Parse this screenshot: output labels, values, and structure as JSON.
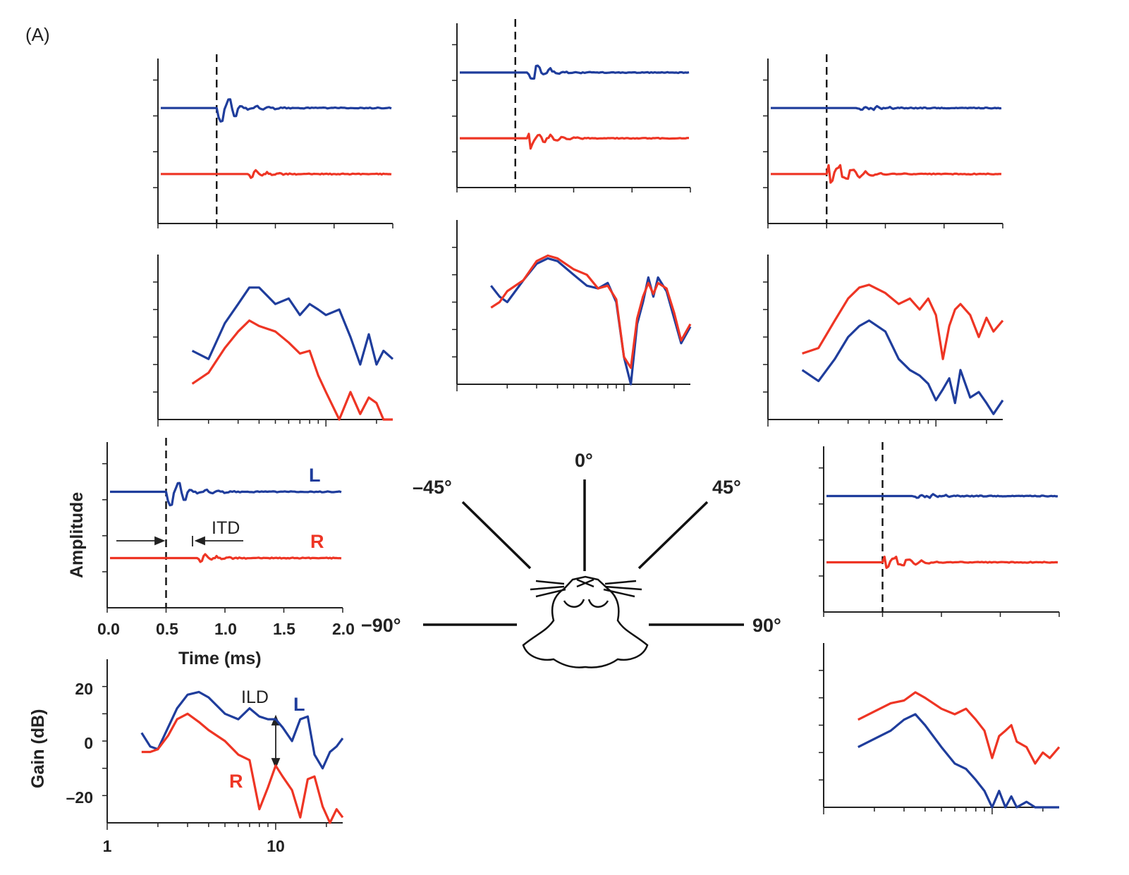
{
  "figure": {
    "panel_label": "(A)",
    "colors": {
      "left_ear": "#1f3d9c",
      "right_ear": "#ee3524",
      "axis": "#222222"
    },
    "azimuth_labels": [
      "–45°",
      "0°",
      "45°",
      "−90°",
      "90°"
    ],
    "annotations": {
      "itd": "ITD",
      "ild": "ILD",
      "left": "L",
      "right": "R"
    }
  },
  "chart_data": [
    {
      "id": "minus90-impulse",
      "type": "line",
      "azimuth": "−90°",
      "xlabel": "Time (ms)",
      "ylabel": "Amplitude",
      "xlim": [
        0,
        2
      ],
      "xticks": [
        "0.0",
        "0.5",
        "1.0",
        "1.5",
        "2.0"
      ],
      "onset_ms": 0.5,
      "series": [
        {
          "name": "L",
          "baseline": 1,
          "onset_ms": 0.5,
          "response": "large"
        },
        {
          "name": "R",
          "baseline": 0,
          "onset_ms": 0.75,
          "response": "small"
        }
      ]
    },
    {
      "id": "minus90-gain",
      "type": "line",
      "azimuth": "−90°",
      "xlabel": "",
      "ylabel": "Gain (dB)",
      "xscale": "log",
      "xlim": [
        1,
        25
      ],
      "ylim": [
        -30,
        30
      ],
      "xticks": [
        "1",
        "10"
      ],
      "yticks": [
        "20",
        "0",
        "–20"
      ],
      "series": [
        {
          "name": "L",
          "x": [
            1.6,
            1.8,
            2.0,
            2.3,
            2.6,
            3.0,
            3.5,
            4.0,
            5.0,
            6.0,
            7.0,
            8.0,
            9.0,
            10.0,
            11.0,
            12.5,
            14.0,
            15.5,
            17.0,
            19.0,
            21.0,
            23.0,
            25.0
          ],
          "y": [
            3,
            -2,
            -3,
            5,
            12,
            17,
            18,
            16,
            10,
            8,
            12,
            9,
            8,
            8,
            5,
            0,
            8,
            9,
            -5,
            -10,
            -4,
            -2,
            1
          ]
        },
        {
          "name": "R",
          "x": [
            1.6,
            1.8,
            2.0,
            2.3,
            2.6,
            3.0,
            3.5,
            4.0,
            5.0,
            6.0,
            7.0,
            8.0,
            9.0,
            10.0,
            11.0,
            12.5,
            14.0,
            15.5,
            17.0,
            19.0,
            21.0,
            23.0,
            25.0
          ],
          "y": [
            -4,
            -4,
            -3,
            2,
            8,
            10,
            7,
            4,
            0,
            -5,
            -7,
            -25,
            -17,
            -9,
            -13,
            -18,
            -28,
            -14,
            -13,
            -24,
            -30,
            -25,
            -28
          ]
        }
      ]
    },
    {
      "id": "minus45-impulse",
      "type": "line",
      "azimuth": "–45°",
      "onset_ms": 0.5,
      "series": [
        {
          "name": "L",
          "baseline": 1,
          "onset_ms": 0.5,
          "response": "large"
        },
        {
          "name": "R",
          "baseline": 0,
          "onset_ms": 0.75,
          "response": "small"
        }
      ]
    },
    {
      "id": "minus45-gain",
      "type": "line",
      "azimuth": "–45°",
      "xscale": "log",
      "series": [
        {
          "name": "L",
          "x": [
            1.6,
            2.0,
            2.5,
            3.0,
            3.5,
            4.0,
            5.0,
            6.0,
            7.0,
            8.0,
            9.0,
            10.0,
            12.0,
            14.0,
            16.0,
            18.0,
            20.0,
            22.0,
            25.0
          ],
          "y": [
            -5,
            -8,
            5,
            12,
            18,
            18,
            12,
            14,
            8,
            12,
            10,
            8,
            10,
            0,
            -10,
            1,
            -10,
            -5,
            -8
          ]
        },
        {
          "name": "R",
          "x": [
            1.6,
            2.0,
            2.5,
            3.0,
            3.5,
            4.0,
            5.0,
            6.0,
            7.0,
            8.0,
            9.0,
            10.0,
            12.0,
            14.0,
            16.0,
            18.0,
            20.0,
            22.0,
            25.0
          ],
          "y": [
            -17,
            -13,
            -4,
            2,
            6,
            4,
            2,
            -2,
            -6,
            -5,
            -14,
            -20,
            -32,
            -20,
            -28,
            -22,
            -24,
            -36,
            -32
          ]
        }
      ]
    },
    {
      "id": "zero-impulse",
      "type": "line",
      "azimuth": "0°",
      "onset_ms": 0.5,
      "series": [
        {
          "name": "L",
          "baseline": 1,
          "onset_ms": 0.6,
          "response": "medium"
        },
        {
          "name": "R",
          "baseline": 0,
          "onset_ms": 0.6,
          "response": "medium"
        }
      ]
    },
    {
      "id": "zero-gain",
      "type": "line",
      "azimuth": "0°",
      "xscale": "log",
      "series": [
        {
          "name": "L",
          "x": [
            1.6,
            1.8,
            2.0,
            2.5,
            3.0,
            3.5,
            4.0,
            5.0,
            6.0,
            7.0,
            8.0,
            9.0,
            10.0,
            11.0,
            12.0,
            13.0,
            14.0,
            15.0,
            16.0,
            18.0,
            20.0,
            22.0,
            25.0
          ],
          "y": [
            6,
            2,
            0,
            8,
            14,
            16,
            15,
            10,
            6,
            5,
            7,
            0,
            -20,
            -33,
            -8,
            0,
            9,
            2,
            9,
            4,
            -6,
            -15,
            -9
          ]
        },
        {
          "name": "R",
          "x": [
            1.6,
            1.8,
            2.0,
            2.5,
            3.0,
            3.5,
            4.0,
            5.0,
            6.0,
            7.0,
            8.0,
            9.0,
            10.0,
            11.0,
            12.0,
            13.0,
            14.0,
            15.0,
            16.0,
            18.0,
            20.0,
            22.0,
            25.0
          ],
          "y": [
            -2,
            0,
            4,
            8,
            15,
            17,
            16,
            12,
            10,
            5,
            6,
            1,
            -20,
            -24,
            -6,
            2,
            7,
            3,
            7,
            5,
            -4,
            -14,
            -8
          ]
        }
      ]
    },
    {
      "id": "plus45-impulse",
      "type": "line",
      "azimuth": "45°",
      "onset_ms": 0.5,
      "series": [
        {
          "name": "L",
          "baseline": 1,
          "onset_ms": 0.75,
          "response": "small"
        },
        {
          "name": "R",
          "baseline": 0,
          "onset_ms": 0.5,
          "response": "large"
        }
      ]
    },
    {
      "id": "plus45-gain",
      "type": "line",
      "azimuth": "45°",
      "xscale": "log",
      "series": [
        {
          "name": "L",
          "x": [
            1.6,
            2.0,
            2.5,
            3.0,
            3.5,
            4.0,
            5.0,
            6.0,
            7.0,
            8.0,
            9.0,
            10.0,
            11.0,
            12.0,
            13.0,
            14.0,
            16.0,
            18.0,
            20.0,
            22.0,
            25.0
          ],
          "y": [
            -12,
            -16,
            -8,
            0,
            4,
            6,
            2,
            -8,
            -12,
            -14,
            -17,
            -23,
            -19,
            -15,
            -24,
            -12,
            -22,
            -20,
            -24,
            -28,
            -23
          ]
        },
        {
          "name": "R",
          "x": [
            1.6,
            2.0,
            2.5,
            3.0,
            3.5,
            4.0,
            5.0,
            6.0,
            7.0,
            8.0,
            9.0,
            10.0,
            11.0,
            12.0,
            13.0,
            14.0,
            16.0,
            18.0,
            20.0,
            22.0,
            25.0
          ],
          "y": [
            -6,
            -4,
            6,
            14,
            18,
            19,
            16,
            12,
            14,
            10,
            14,
            8,
            -8,
            4,
            10,
            12,
            8,
            0,
            7,
            2,
            6
          ]
        }
      ]
    },
    {
      "id": "plus90-impulse",
      "type": "line",
      "azimuth": "90°",
      "onset_ms": 0.5,
      "series": [
        {
          "name": "L",
          "baseline": 1,
          "onset_ms": 0.75,
          "response": "small"
        },
        {
          "name": "R",
          "baseline": 0,
          "onset_ms": 0.5,
          "response": "medium"
        }
      ]
    },
    {
      "id": "plus90-gain",
      "type": "line",
      "azimuth": "90°",
      "xscale": "log",
      "series": [
        {
          "name": "L",
          "x": [
            1.6,
            2.0,
            2.5,
            3.0,
            3.5,
            4.0,
            5.0,
            6.0,
            7.0,
            8.0,
            9.0,
            10.0,
            11.0,
            12.0,
            13.0,
            14.0,
            16.0,
            18.0,
            20.0,
            22.0,
            25.0
          ],
          "y": [
            -8,
            -5,
            -2,
            2,
            4,
            0,
            -8,
            -14,
            -16,
            -20,
            -24,
            -30,
            -24,
            -32,
            -26,
            -30,
            -28,
            -32,
            -34,
            -30,
            -32
          ]
        },
        {
          "name": "R",
          "x": [
            1.6,
            2.0,
            2.5,
            3.0,
            3.5,
            4.0,
            5.0,
            6.0,
            7.0,
            8.0,
            9.0,
            10.0,
            11.0,
            12.0,
            13.0,
            14.0,
            16.0,
            18.0,
            20.0,
            22.0,
            25.0
          ],
          "y": [
            2,
            5,
            8,
            9,
            12,
            10,
            6,
            4,
            6,
            2,
            -2,
            -12,
            -4,
            -2,
            0,
            -6,
            -8,
            -14,
            -10,
            -12,
            -8
          ]
        }
      ]
    }
  ]
}
